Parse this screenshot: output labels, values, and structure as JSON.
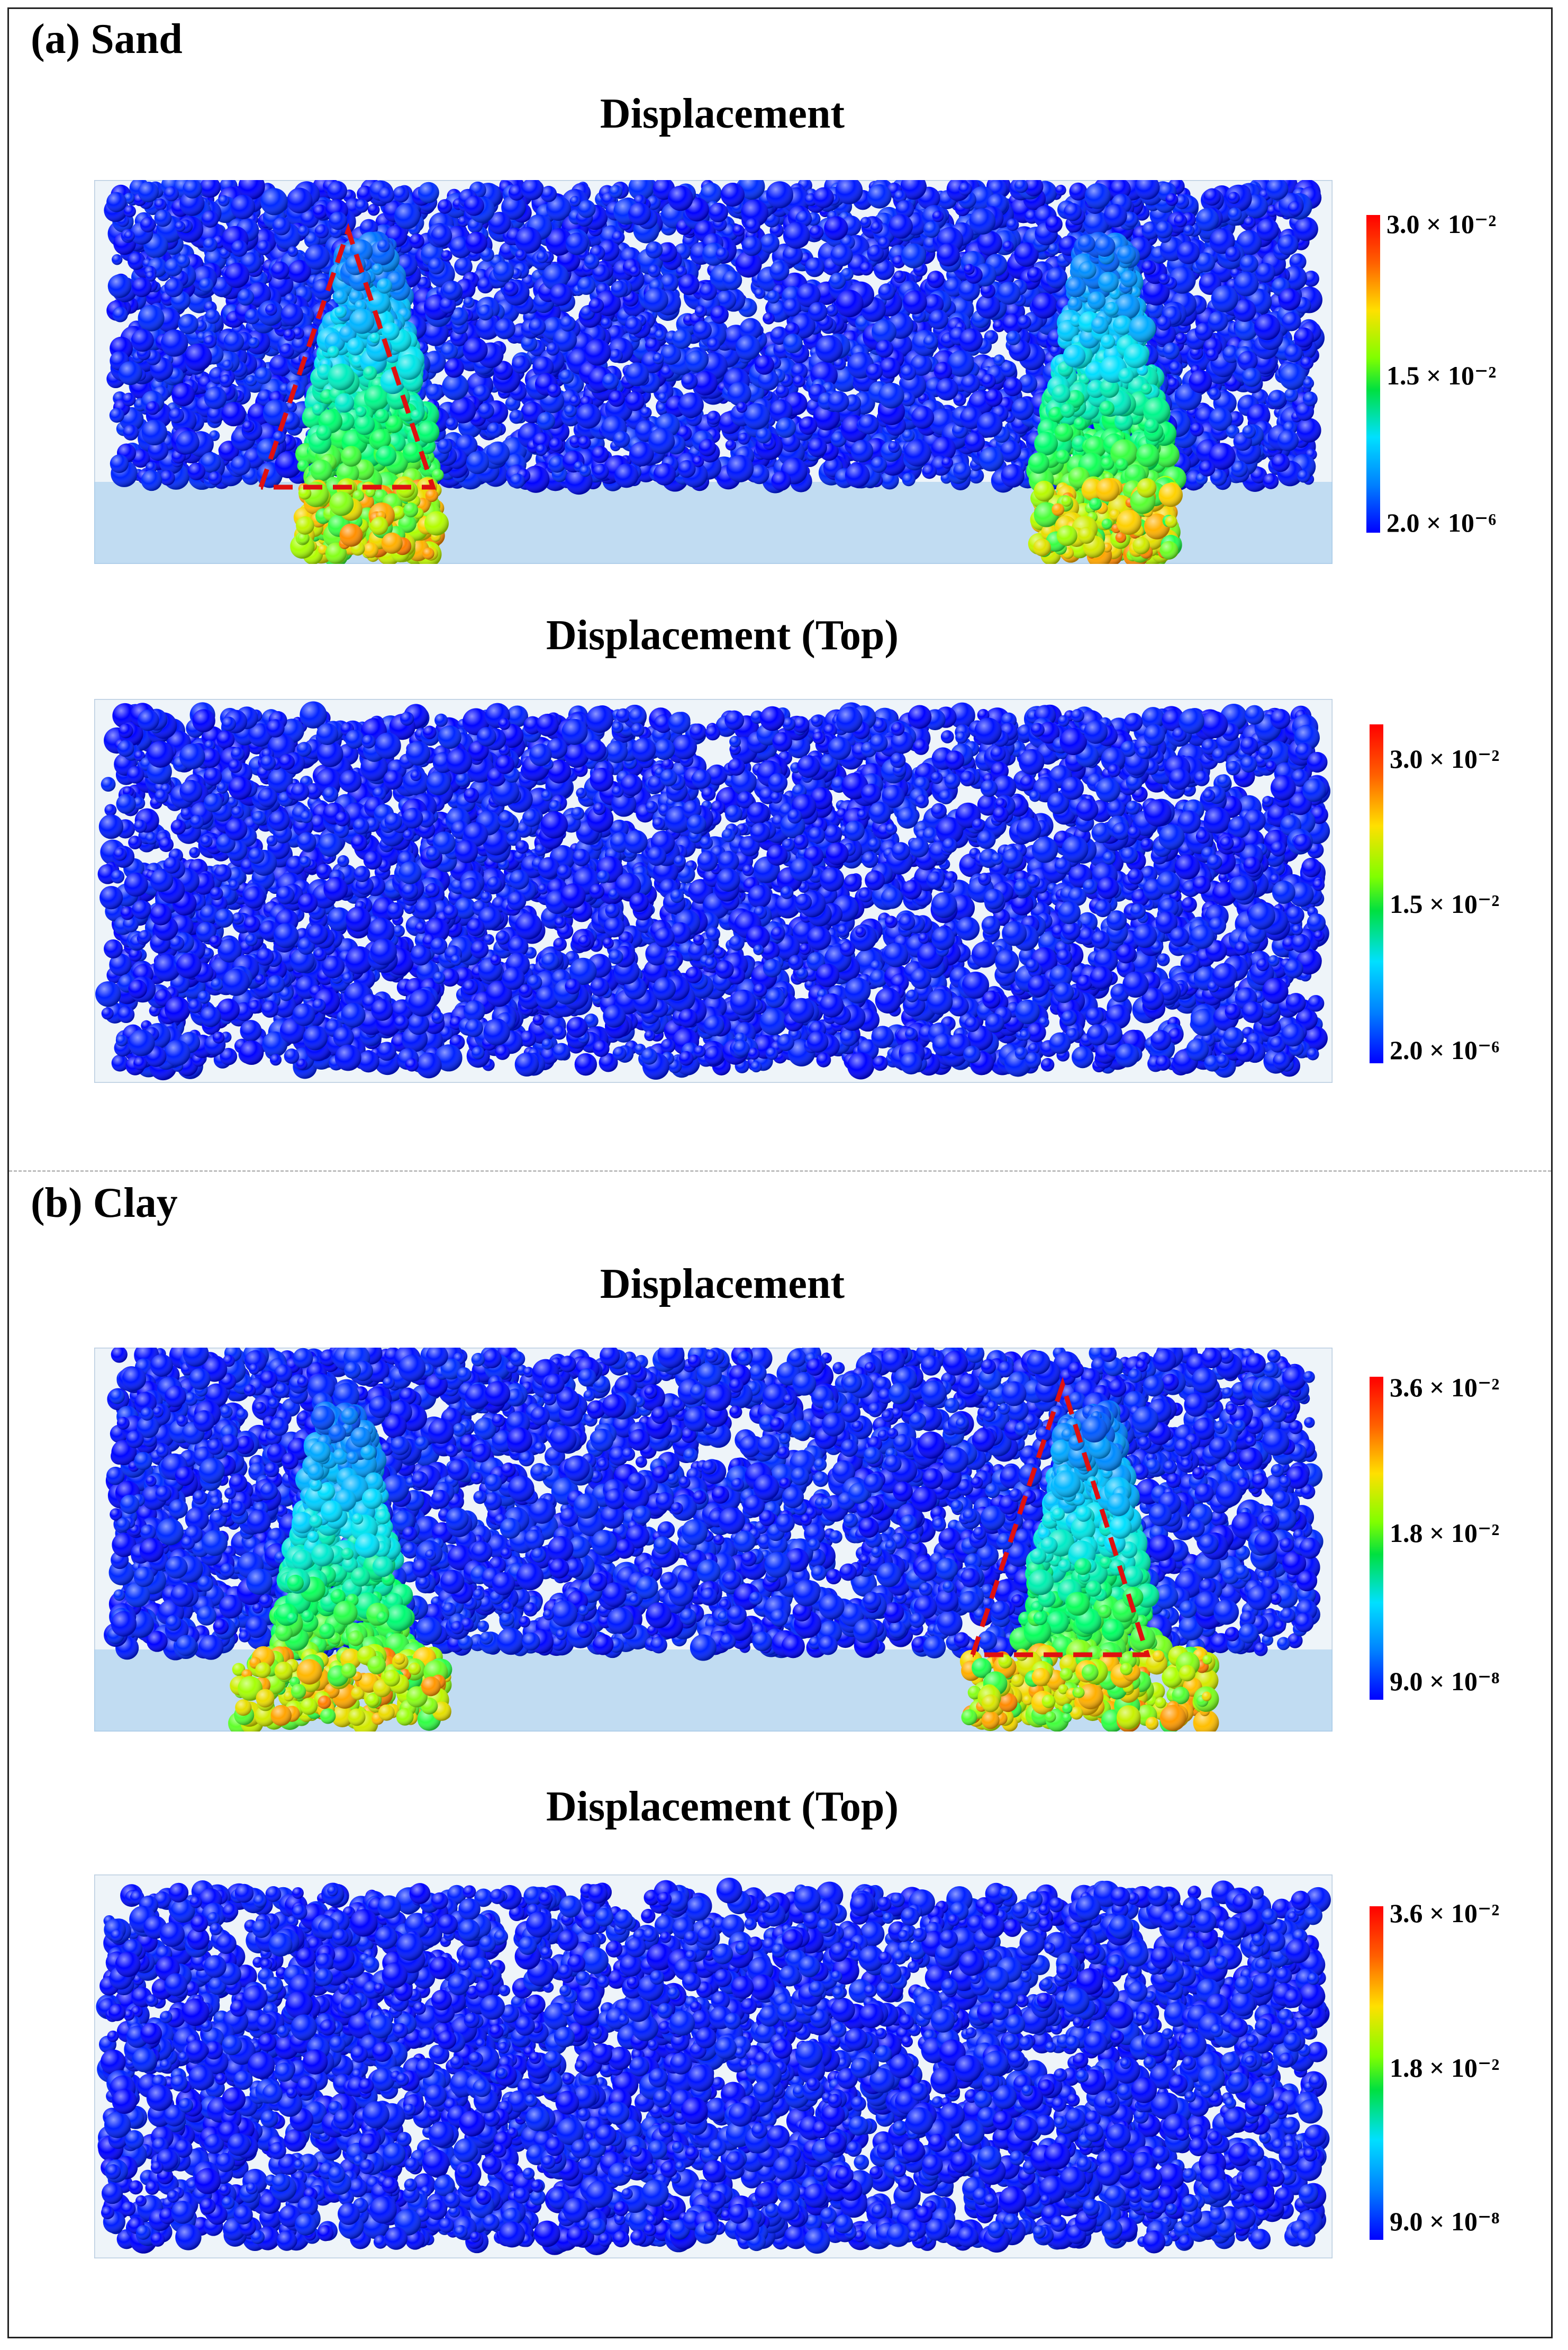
{
  "sections": [
    {
      "id": "a",
      "label": "(a) Sand",
      "panels": [
        {
          "title": "Displacement",
          "view": "side",
          "colorbar_ticks": [
            "3.0 × 10⁻²",
            "1.5 × 10⁻²",
            "2.0 × 10⁻⁶"
          ]
        },
        {
          "title": "Displacement (Top)",
          "view": "top",
          "colorbar_ticks": [
            "3.0 × 10⁻²",
            "1.5 × 10⁻²",
            "2.0 × 10⁻⁶"
          ]
        }
      ]
    },
    {
      "id": "b",
      "label": "(b) Clay",
      "panels": [
        {
          "title": "Displacement",
          "view": "side",
          "colorbar_ticks": [
            "3.6 × 10⁻²",
            "1.8 × 10⁻²",
            "9.0 × 10⁻⁸"
          ]
        },
        {
          "title": "Displacement (Top)",
          "view": "top",
          "colorbar_ticks": [
            "3.6 × 10⁻²",
            "1.8 × 10⁻²",
            "9.0 × 10⁻⁸"
          ]
        }
      ]
    }
  ],
  "colors": {
    "particles_low": "#0a1ee0",
    "colormap": [
      "#0000ff",
      "#0070ff",
      "#00e0ff",
      "#00ff60",
      "#b0ff00",
      "#ffd000",
      "#ff4000",
      "#ff0000"
    ],
    "failure_outline": "#e01010",
    "soil_box": "#cfe0ee"
  }
}
